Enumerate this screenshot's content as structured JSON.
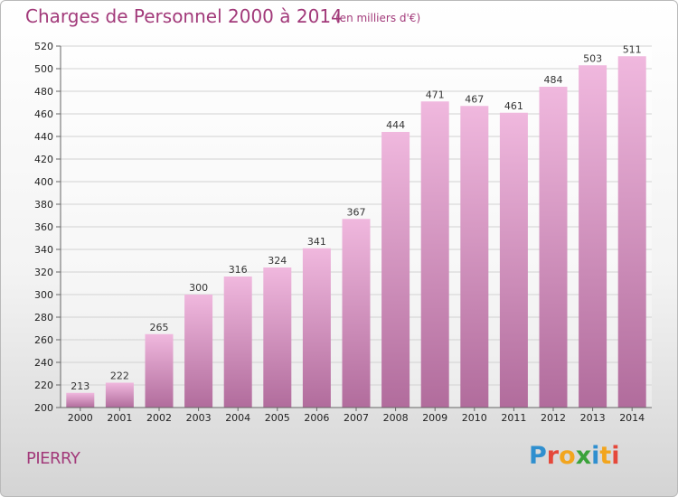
{
  "header": {
    "title": "Charges de Personnel 2000 à 2014",
    "unit": "(en milliers d'€)"
  },
  "footer": {
    "town": "PIERRY",
    "logo_letters": [
      "P",
      "r",
      "o",
      "x",
      "i",
      "t",
      "i"
    ],
    "logo_colors": [
      "#2f8fcf",
      "#e5483a",
      "#f2a51e",
      "#3aa23a",
      "#2f8fcf",
      "#f2a51e",
      "#e5483a"
    ]
  },
  "colors": {
    "bar_top": "#f0b8de",
    "bar_bottom": "#b16c9c",
    "grid": "#d2d2d2",
    "accent": "#a23a7a"
  },
  "chart_data": {
    "type": "bar",
    "categories": [
      "2000",
      "2001",
      "2002",
      "2003",
      "2004",
      "2005",
      "2006",
      "2007",
      "2008",
      "2009",
      "2010",
      "2011",
      "2012",
      "2013",
      "2014"
    ],
    "values": [
      213,
      222,
      265,
      300,
      316,
      324,
      341,
      367,
      444,
      471,
      467,
      461,
      484,
      503,
      511
    ],
    "title": "Charges de Personnel 2000 à 2014",
    "ylim": [
      200,
      520
    ],
    "yticks": [
      200,
      220,
      240,
      260,
      280,
      300,
      320,
      340,
      360,
      380,
      400,
      420,
      440,
      460,
      480,
      500,
      520
    ],
    "grid": true,
    "data_labels": true
  }
}
